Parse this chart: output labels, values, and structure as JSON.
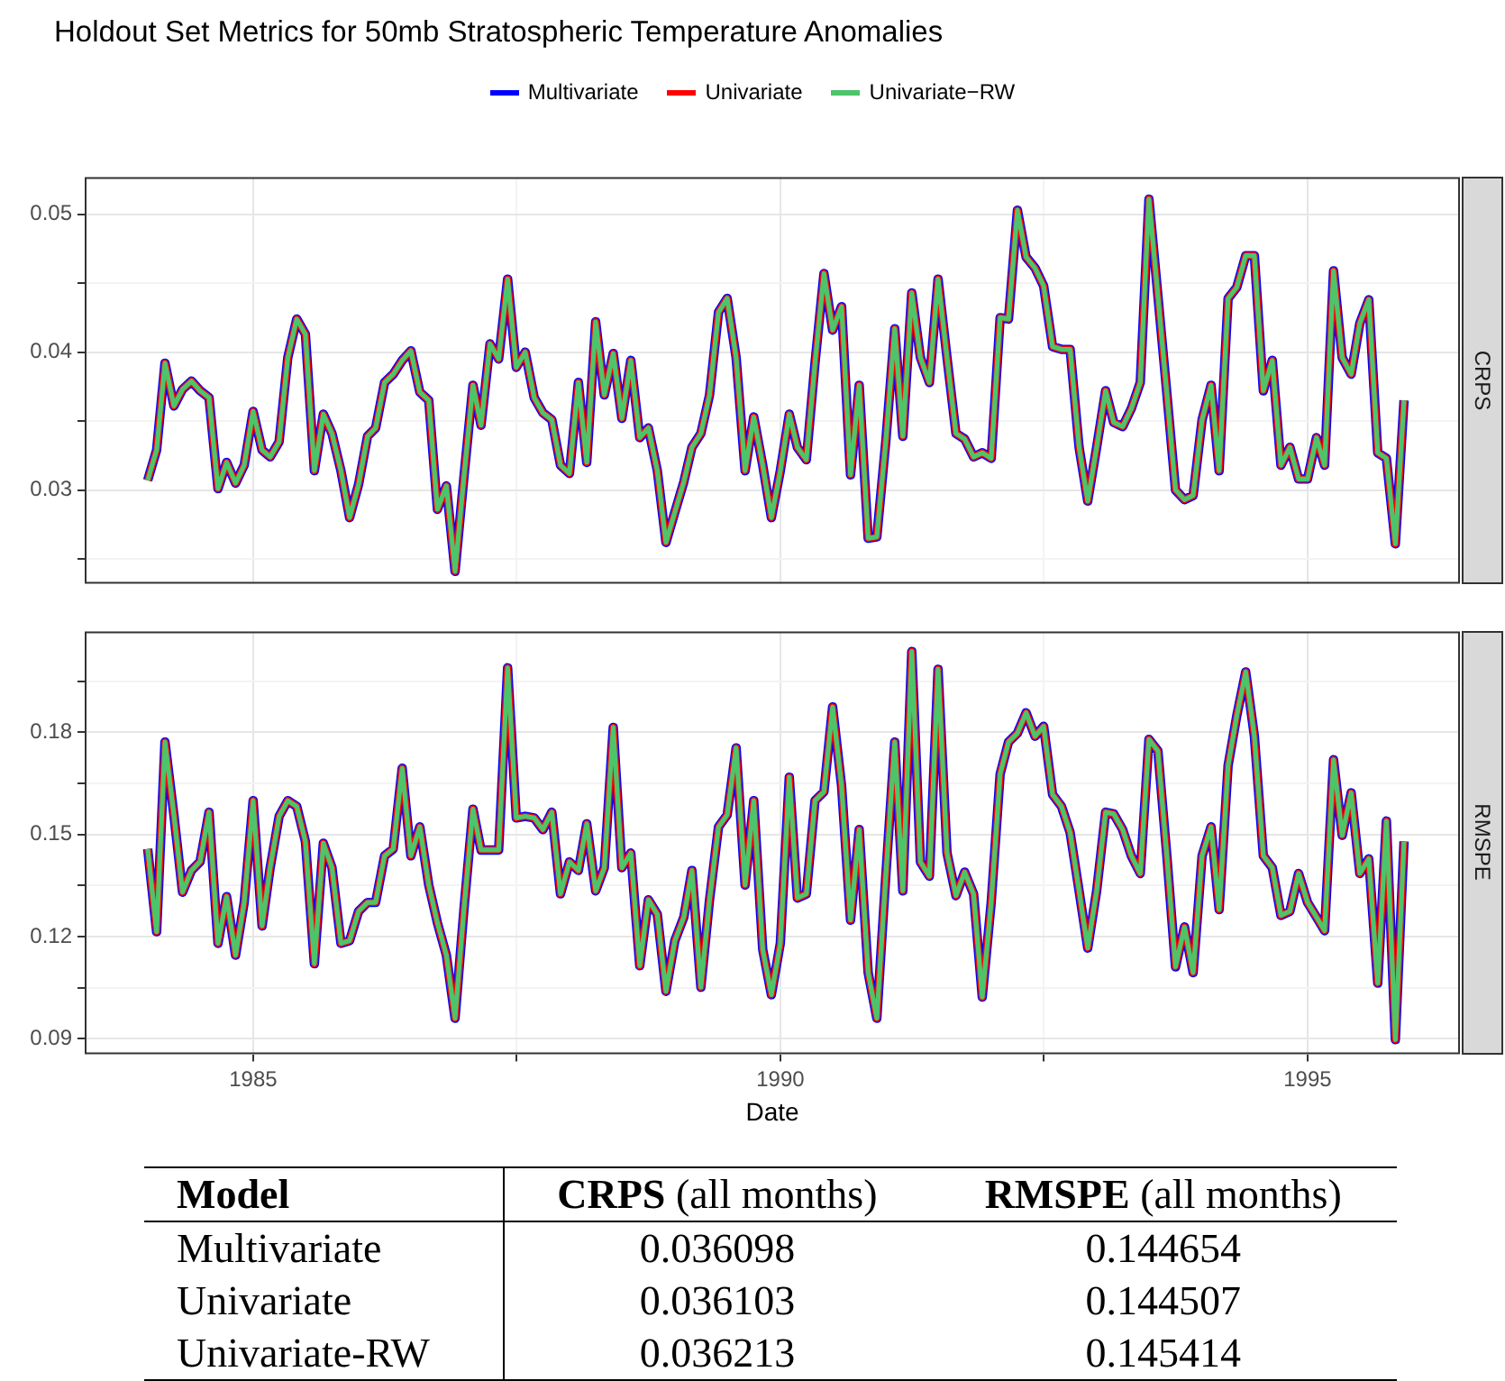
{
  "chart_data": [
    {
      "type": "line",
      "title": "Holdout Set Metrics for 50mb Stratospheric Temperature Anomalies",
      "ylabel": "CRPS",
      "legend": "top",
      "grid": true,
      "marker": "none",
      "tick_labels": "y",
      "xlim": [
        "1983-05-28",
        "1996-06-12"
      ],
      "xticks": [
        "1985",
        "1990",
        "1995",
        {
          "value": "1987-07-02",
          "label": null
        },
        {
          "value": "1992-07-02",
          "label": null
        }
      ],
      "ylim": [
        0.0232,
        0.0527
      ],
      "yticks": [
        0.03,
        0.04,
        0.05,
        {
          "value": 0.025,
          "label": null
        },
        {
          "value": 0.035,
          "label": null
        },
        {
          "value": 0.045,
          "label": null
        }
      ],
      "x": [
        "1984-01",
        "1984-02",
        "1984-03",
        "1984-04",
        "1984-05",
        "1984-06",
        "1984-07",
        "1984-08",
        "1984-09",
        "1984-10",
        "1984-11",
        "1984-12",
        "1985-01",
        "1985-02",
        "1985-03",
        "1985-04",
        "1985-05",
        "1985-06",
        "1985-07",
        "1985-08",
        "1985-09",
        "1985-10",
        "1985-11",
        "1985-12",
        "1986-01",
        "1986-02",
        "1986-03",
        "1986-04",
        "1986-05",
        "1986-06",
        "1986-07",
        "1986-08",
        "1986-09",
        "1986-10",
        "1986-11",
        "1986-12",
        "1987-01",
        "1987-02",
        "1987-03",
        "1987-04",
        "1987-05",
        "1987-06",
        "1987-07",
        "1987-08",
        "1987-09",
        "1987-10",
        "1987-11",
        "1987-12",
        "1988-01",
        "1988-02",
        "1988-03",
        "1988-04",
        "1988-05",
        "1988-06",
        "1988-07",
        "1988-08",
        "1988-09",
        "1988-10",
        "1988-11",
        "1988-12",
        "1989-01",
        "1989-02",
        "1989-03",
        "1989-04",
        "1989-05",
        "1989-06",
        "1989-07",
        "1989-08",
        "1989-09",
        "1989-10",
        "1989-11",
        "1989-12",
        "1990-01",
        "1990-02",
        "1990-03",
        "1990-04",
        "1990-05",
        "1990-06",
        "1990-07",
        "1990-08",
        "1990-09",
        "1990-10",
        "1990-11",
        "1990-12",
        "1991-01",
        "1991-02",
        "1991-03",
        "1991-04",
        "1991-05",
        "1991-06",
        "1991-07",
        "1991-08",
        "1991-09",
        "1991-10",
        "1991-11",
        "1991-12",
        "1992-01",
        "1992-02",
        "1992-03",
        "1992-04",
        "1992-05",
        "1992-06",
        "1992-07",
        "1992-08",
        "1992-09",
        "1992-10",
        "1992-11",
        "1992-12",
        "1993-01",
        "1993-02",
        "1993-03",
        "1993-04",
        "1993-05",
        "1993-06",
        "1993-07",
        "1993-08",
        "1993-09",
        "1993-10",
        "1993-11",
        "1993-12",
        "1994-01",
        "1994-02",
        "1994-03",
        "1994-04",
        "1994-05",
        "1994-06",
        "1994-07",
        "1994-08",
        "1994-09",
        "1994-10",
        "1994-11",
        "1994-12",
        "1995-01",
        "1995-02",
        "1995-03",
        "1995-04",
        "1995-05",
        "1995-06",
        "1995-07",
        "1995-08",
        "1995-09",
        "1995-10",
        "1995-11",
        "1995-12"
      ],
      "series": [
        {
          "name": "Multivariate",
          "color": "#0000ff",
          "values": [
            0.0307,
            0.0329,
            0.0392,
            0.0361,
            0.0373,
            0.0379,
            0.0372,
            0.0367,
            0.0301,
            0.032,
            0.0305,
            0.0318,
            0.0357,
            0.0329,
            0.0324,
            0.0335,
            0.0396,
            0.0424,
            0.0413,
            0.0314,
            0.0355,
            0.0341,
            0.0314,
            0.028,
            0.0304,
            0.0339,
            0.0345,
            0.0378,
            0.0384,
            0.0394,
            0.0401,
            0.0371,
            0.0365,
            0.0286,
            0.0303,
            0.0241,
            0.031,
            0.0376,
            0.0347,
            0.0406,
            0.0395,
            0.0453,
            0.0389,
            0.04,
            0.0367,
            0.0356,
            0.0351,
            0.0318,
            0.0312,
            0.0378,
            0.032,
            0.0422,
            0.0369,
            0.0399,
            0.0352,
            0.0394,
            0.0338,
            0.0345,
            0.0314,
            0.0262,
            0.0284,
            0.0306,
            0.0331,
            0.0341,
            0.0369,
            0.0429,
            0.0439,
            0.0396,
            0.0314,
            0.0353,
            0.0318,
            0.028,
            0.0314,
            0.0355,
            0.0331,
            0.0322,
            0.0392,
            0.0457,
            0.0416,
            0.0433,
            0.0311,
            0.0376,
            0.0265,
            0.0266,
            0.0335,
            0.0417,
            0.0339,
            0.0443,
            0.0396,
            0.0378,
            0.0453,
            0.0396,
            0.0341,
            0.0337,
            0.0324,
            0.0327,
            0.0323,
            0.0425,
            0.0424,
            0.0503,
            0.0469,
            0.0461,
            0.0448,
            0.0404,
            0.0402,
            0.0402,
            0.0331,
            0.0292,
            0.0331,
            0.0372,
            0.0349,
            0.0346,
            0.0359,
            0.0378,
            0.0511,
            0.0441,
            0.037,
            0.03,
            0.0293,
            0.0296,
            0.0351,
            0.0376,
            0.0314,
            0.0439,
            0.0447,
            0.047,
            0.047,
            0.0372,
            0.0394,
            0.0318,
            0.0331,
            0.0308,
            0.0308,
            0.0338,
            0.0318,
            0.0459,
            0.0396,
            0.0384,
            0.0421,
            0.0438,
            0.0327,
            0.0323,
            0.0261,
            0.0365
          ]
        },
        {
          "name": "Univariate",
          "color": "#ff0000",
          "values": [
            0.0307,
            0.0329,
            0.0392,
            0.0361,
            0.0373,
            0.0379,
            0.0372,
            0.0367,
            0.0301,
            0.032,
            0.0305,
            0.0318,
            0.0357,
            0.0329,
            0.0324,
            0.0335,
            0.0396,
            0.0424,
            0.0413,
            0.0314,
            0.0355,
            0.0341,
            0.0314,
            0.028,
            0.0304,
            0.0339,
            0.0345,
            0.0378,
            0.0384,
            0.0394,
            0.0401,
            0.0371,
            0.0365,
            0.0286,
            0.0303,
            0.0241,
            0.031,
            0.0376,
            0.0347,
            0.0406,
            0.0395,
            0.0453,
            0.0389,
            0.04,
            0.0367,
            0.0356,
            0.0351,
            0.0318,
            0.0312,
            0.0378,
            0.032,
            0.0422,
            0.0369,
            0.0399,
            0.0352,
            0.0394,
            0.0338,
            0.0345,
            0.0314,
            0.0262,
            0.0284,
            0.0306,
            0.0331,
            0.0341,
            0.0369,
            0.0429,
            0.0439,
            0.0396,
            0.0314,
            0.0353,
            0.0318,
            0.028,
            0.0314,
            0.0355,
            0.0331,
            0.0322,
            0.0392,
            0.0457,
            0.0416,
            0.0433,
            0.0311,
            0.0376,
            0.0265,
            0.0266,
            0.0335,
            0.0417,
            0.0339,
            0.0443,
            0.0396,
            0.0378,
            0.0453,
            0.0396,
            0.0341,
            0.0337,
            0.0324,
            0.0327,
            0.0323,
            0.0425,
            0.0424,
            0.0503,
            0.0469,
            0.0461,
            0.0448,
            0.0404,
            0.0402,
            0.0402,
            0.0331,
            0.0292,
            0.0331,
            0.0372,
            0.0349,
            0.0346,
            0.0359,
            0.0378,
            0.0511,
            0.0441,
            0.037,
            0.03,
            0.0293,
            0.0296,
            0.0351,
            0.0376,
            0.0314,
            0.0439,
            0.0447,
            0.047,
            0.047,
            0.0372,
            0.0394,
            0.0318,
            0.0331,
            0.0308,
            0.0308,
            0.0338,
            0.0318,
            0.0459,
            0.0396,
            0.0384,
            0.0421,
            0.0438,
            0.0327,
            0.0323,
            0.0261,
            0.0365
          ]
        },
        {
          "name": "Univariate−RW",
          "color": "#4dc46a",
          "values": [
            0.0307,
            0.0329,
            0.0392,
            0.0361,
            0.0373,
            0.0379,
            0.0372,
            0.0367,
            0.0301,
            0.032,
            0.0305,
            0.0318,
            0.0357,
            0.0329,
            0.0324,
            0.0335,
            0.0396,
            0.0424,
            0.0413,
            0.0314,
            0.0355,
            0.0341,
            0.0314,
            0.028,
            0.0304,
            0.0339,
            0.0345,
            0.0378,
            0.0384,
            0.0394,
            0.0401,
            0.0371,
            0.0365,
            0.0286,
            0.0303,
            0.0241,
            0.031,
            0.0376,
            0.0347,
            0.0406,
            0.0395,
            0.0453,
            0.0389,
            0.04,
            0.0367,
            0.0356,
            0.0351,
            0.0318,
            0.0312,
            0.0378,
            0.032,
            0.0422,
            0.0369,
            0.0399,
            0.0352,
            0.0394,
            0.0338,
            0.0345,
            0.0314,
            0.0262,
            0.0284,
            0.0306,
            0.0331,
            0.0341,
            0.0369,
            0.0429,
            0.0439,
            0.0396,
            0.0314,
            0.0353,
            0.0318,
            0.028,
            0.0314,
            0.0355,
            0.0331,
            0.0322,
            0.0392,
            0.0457,
            0.0416,
            0.0433,
            0.0311,
            0.0376,
            0.0265,
            0.0266,
            0.0335,
            0.0417,
            0.0339,
            0.0443,
            0.0396,
            0.0378,
            0.0453,
            0.0396,
            0.0341,
            0.0337,
            0.0324,
            0.0327,
            0.0323,
            0.0425,
            0.0424,
            0.0503,
            0.0469,
            0.0461,
            0.0448,
            0.0404,
            0.0402,
            0.0402,
            0.0331,
            0.0292,
            0.0331,
            0.0372,
            0.0349,
            0.0346,
            0.0359,
            0.0378,
            0.0511,
            0.0441,
            0.037,
            0.03,
            0.0293,
            0.0296,
            0.0351,
            0.0376,
            0.0314,
            0.0439,
            0.0447,
            0.047,
            0.047,
            0.0372,
            0.0394,
            0.0318,
            0.0331,
            0.0308,
            0.0308,
            0.0338,
            0.0318,
            0.0459,
            0.0396,
            0.0384,
            0.0421,
            0.0438,
            0.0327,
            0.0323,
            0.0261,
            0.0365
          ]
        }
      ]
    },
    {
      "type": "line",
      "ylabel": "RMSPE",
      "xlabel": "Date",
      "grid": true,
      "marker": "none",
      "xlim": [
        "1983-05-28",
        "1996-06-12"
      ],
      "xticks": [
        "1985",
        "1990",
        "1995",
        {
          "value": "1987-07-02",
          "label": null
        },
        {
          "value": "1992-07-02",
          "label": null
        }
      ],
      "ylim": [
        0.0854,
        0.2096
      ],
      "yticks": [
        0.09,
        0.12,
        0.15,
        0.18,
        {
          "value": 0.105,
          "label": null
        },
        {
          "value": 0.135,
          "label": null
        },
        {
          "value": 0.165,
          "label": null
        },
        {
          "value": 0.195,
          "label": null
        }
      ],
      "x": [
        "1984-01",
        "1984-02",
        "1984-03",
        "1984-04",
        "1984-05",
        "1984-06",
        "1984-07",
        "1984-08",
        "1984-09",
        "1984-10",
        "1984-11",
        "1984-12",
        "1985-01",
        "1985-02",
        "1985-03",
        "1985-04",
        "1985-05",
        "1985-06",
        "1985-07",
        "1985-08",
        "1985-09",
        "1985-10",
        "1985-11",
        "1985-12",
        "1986-01",
        "1986-02",
        "1986-03",
        "1986-04",
        "1986-05",
        "1986-06",
        "1986-07",
        "1986-08",
        "1986-09",
        "1986-10",
        "1986-11",
        "1986-12",
        "1987-01",
        "1987-02",
        "1987-03",
        "1987-04",
        "1987-05",
        "1987-06",
        "1987-07",
        "1987-08",
        "1987-09",
        "1987-10",
        "1987-11",
        "1987-12",
        "1988-01",
        "1988-02",
        "1988-03",
        "1988-04",
        "1988-05",
        "1988-06",
        "1988-07",
        "1988-08",
        "1988-09",
        "1988-10",
        "1988-11",
        "1988-12",
        "1989-01",
        "1989-02",
        "1989-03",
        "1989-04",
        "1989-05",
        "1989-06",
        "1989-07",
        "1989-08",
        "1989-09",
        "1989-10",
        "1989-11",
        "1989-12",
        "1990-01",
        "1990-02",
        "1990-03",
        "1990-04",
        "1990-05",
        "1990-06",
        "1990-07",
        "1990-08",
        "1990-09",
        "1990-10",
        "1990-11",
        "1990-12",
        "1991-01",
        "1991-02",
        "1991-03",
        "1991-04",
        "1991-05",
        "1991-06",
        "1991-07",
        "1991-08",
        "1991-09",
        "1991-10",
        "1991-11",
        "1991-12",
        "1992-01",
        "1992-02",
        "1992-03",
        "1992-04",
        "1992-05",
        "1992-06",
        "1992-07",
        "1992-08",
        "1992-09",
        "1992-10",
        "1992-11",
        "1992-12",
        "1993-01",
        "1993-02",
        "1993-03",
        "1993-04",
        "1993-05",
        "1993-06",
        "1993-07",
        "1993-08",
        "1993-09",
        "1993-10",
        "1993-11",
        "1993-12",
        "1994-01",
        "1994-02",
        "1994-03",
        "1994-04",
        "1994-05",
        "1994-06",
        "1994-07",
        "1994-08",
        "1994-09",
        "1994-10",
        "1994-11",
        "1994-12",
        "1995-01",
        "1995-02",
        "1995-03",
        "1995-04",
        "1995-05",
        "1995-06",
        "1995-07",
        "1995-08",
        "1995-09",
        "1995-10",
        "1995-11",
        "1995-12"
      ],
      "series": [
        {
          "color": "#0000ff",
          "values": [
            0.1457,
            0.1214,
            0.1771,
            0.1557,
            0.133,
            0.1394,
            0.142,
            0.1565,
            0.118,
            0.1317,
            0.1145,
            0.13,
            0.1599,
            0.1231,
            0.1402,
            0.1553,
            0.1599,
            0.1582,
            0.1479,
            0.112,
            0.1474,
            0.1402,
            0.118,
            0.1188,
            0.1274,
            0.13,
            0.13,
            0.1437,
            0.1457,
            0.1694,
            0.1437,
            0.1522,
            0.1351,
            0.124,
            0.1145,
            0.096,
            0.1282,
            0.1574,
            0.1454,
            0.1454,
            0.1454,
            0.1989,
            0.1548,
            0.1553,
            0.1548,
            0.1514,
            0.1565,
            0.1325,
            0.1419,
            0.1394,
            0.1531,
            0.1334,
            0.1402,
            0.1814,
            0.1402,
            0.1445,
            0.1114,
            0.1308,
            0.1265,
            0.1039,
            0.1188,
            0.1257,
            0.1394,
            0.1051,
            0.1308,
            0.1522,
            0.1557,
            0.1754,
            0.1351,
            0.1599,
            0.1162,
            0.1029,
            0.118,
            0.1668,
            0.1313,
            0.1325,
            0.1599,
            0.1625,
            0.1874,
            0.1642,
            0.1248,
            0.1514,
            0.1094,
            0.096,
            0.1377,
            0.1771,
            0.1334,
            0.2037,
            0.1419,
            0.1377,
            0.1985,
            0.1445,
            0.132,
            0.1389,
            0.1325,
            0.1022,
            0.13,
            0.1677,
            0.1771,
            0.1797,
            0.1857,
            0.1788,
            0.1817,
            0.1617,
            0.1582,
            0.1505,
            0.1334,
            0.1166,
            0.1334,
            0.1565,
            0.156,
            0.1514,
            0.1437,
            0.1385,
            0.1779,
            0.1745,
            0.1437,
            0.1111,
            0.1228,
            0.1094,
            0.1437,
            0.1522,
            0.1279,
            0.1702,
            0.1848,
            0.1977,
            0.1788,
            0.1437,
            0.1402,
            0.1262,
            0.1274,
            0.1385,
            0.13,
            0.1257,
            0.1217,
            0.1719,
            0.1497,
            0.1622,
            0.1385,
            0.1428,
            0.1063,
            0.1539,
            0.0897,
            0.1479
          ]
        },
        {
          "color": "#ff0000",
          "values": [
            0.1457,
            0.1214,
            0.1771,
            0.1557,
            0.133,
            0.1394,
            0.142,
            0.1565,
            0.118,
            0.1317,
            0.1145,
            0.13,
            0.1599,
            0.1231,
            0.1402,
            0.1553,
            0.1599,
            0.1582,
            0.1479,
            0.112,
            0.1474,
            0.1402,
            0.118,
            0.1188,
            0.1274,
            0.13,
            0.13,
            0.1437,
            0.1457,
            0.1694,
            0.1437,
            0.1522,
            0.1351,
            0.124,
            0.1145,
            0.096,
            0.1282,
            0.1574,
            0.1454,
            0.1454,
            0.1454,
            0.1989,
            0.1548,
            0.1553,
            0.1548,
            0.1514,
            0.1565,
            0.1325,
            0.1419,
            0.1394,
            0.1531,
            0.1334,
            0.1402,
            0.1814,
            0.1402,
            0.1445,
            0.1114,
            0.1308,
            0.1265,
            0.1039,
            0.1188,
            0.1257,
            0.1394,
            0.1051,
            0.1308,
            0.1522,
            0.1557,
            0.1754,
            0.1351,
            0.1599,
            0.1162,
            0.1029,
            0.118,
            0.1668,
            0.1313,
            0.1325,
            0.1599,
            0.1625,
            0.1874,
            0.1642,
            0.1248,
            0.1514,
            0.1094,
            0.096,
            0.1377,
            0.1771,
            0.1334,
            0.2037,
            0.1419,
            0.1377,
            0.1985,
            0.1445,
            0.132,
            0.1389,
            0.1325,
            0.1022,
            0.13,
            0.1677,
            0.1771,
            0.1797,
            0.1857,
            0.1788,
            0.1817,
            0.1617,
            0.1582,
            0.1505,
            0.1334,
            0.1166,
            0.1334,
            0.1565,
            0.156,
            0.1514,
            0.1437,
            0.1385,
            0.1779,
            0.1745,
            0.1437,
            0.1111,
            0.1228,
            0.1094,
            0.1437,
            0.1522,
            0.1279,
            0.1702,
            0.1848,
            0.1977,
            0.1788,
            0.1437,
            0.1402,
            0.1262,
            0.1274,
            0.1385,
            0.13,
            0.1257,
            0.1217,
            0.1719,
            0.1497,
            0.1622,
            0.1385,
            0.1428,
            0.1063,
            0.1539,
            0.0897,
            0.1479
          ]
        },
        {
          "color": "#4dc46a",
          "values": [
            0.1457,
            0.1214,
            0.1771,
            0.1557,
            0.133,
            0.1394,
            0.142,
            0.1565,
            0.118,
            0.1317,
            0.1145,
            0.13,
            0.1599,
            0.1231,
            0.1402,
            0.1553,
            0.1599,
            0.1582,
            0.1479,
            0.112,
            0.1474,
            0.1402,
            0.118,
            0.1188,
            0.1274,
            0.13,
            0.13,
            0.1437,
            0.1457,
            0.1694,
            0.1437,
            0.1522,
            0.1351,
            0.124,
            0.1145,
            0.096,
            0.1282,
            0.1574,
            0.1454,
            0.1454,
            0.1454,
            0.1989,
            0.1548,
            0.1553,
            0.1548,
            0.1514,
            0.1565,
            0.1325,
            0.1419,
            0.1394,
            0.1531,
            0.1334,
            0.1402,
            0.1814,
            0.1402,
            0.1445,
            0.1114,
            0.1308,
            0.1265,
            0.1039,
            0.1188,
            0.1257,
            0.1394,
            0.1051,
            0.1308,
            0.1522,
            0.1557,
            0.1754,
            0.1351,
            0.1599,
            0.1162,
            0.1029,
            0.118,
            0.1668,
            0.1313,
            0.1325,
            0.1599,
            0.1625,
            0.1874,
            0.1642,
            0.1248,
            0.1514,
            0.1094,
            0.096,
            0.1377,
            0.1771,
            0.1334,
            0.2037,
            0.1419,
            0.1377,
            0.1985,
            0.1445,
            0.132,
            0.1389,
            0.1325,
            0.1022,
            0.13,
            0.1677,
            0.1771,
            0.1797,
            0.1857,
            0.1788,
            0.1817,
            0.1617,
            0.1582,
            0.1505,
            0.1334,
            0.1166,
            0.1334,
            0.1565,
            0.156,
            0.1514,
            0.1437,
            0.1385,
            0.1779,
            0.1745,
            0.1437,
            0.1111,
            0.1228,
            0.1094,
            0.1437,
            0.1522,
            0.1279,
            0.1702,
            0.1848,
            0.1977,
            0.1788,
            0.1437,
            0.1402,
            0.1262,
            0.1274,
            0.1385,
            0.13,
            0.1257,
            0.1217,
            0.1719,
            0.1497,
            0.1622,
            0.1385,
            0.1428,
            0.1063,
            0.1539,
            0.0897,
            0.1479
          ]
        }
      ]
    },
    {
      "type": "other",
      "annotations": [
        "Model",
        "CRPS (all months)",
        "RMSPE (all months)",
        "Multivariate",
        "0.036098",
        "0.144654",
        "Univariate",
        "0.036103",
        "0.144507",
        "Univariate-RW",
        "0.036213",
        "0.145414"
      ]
    }
  ]
}
